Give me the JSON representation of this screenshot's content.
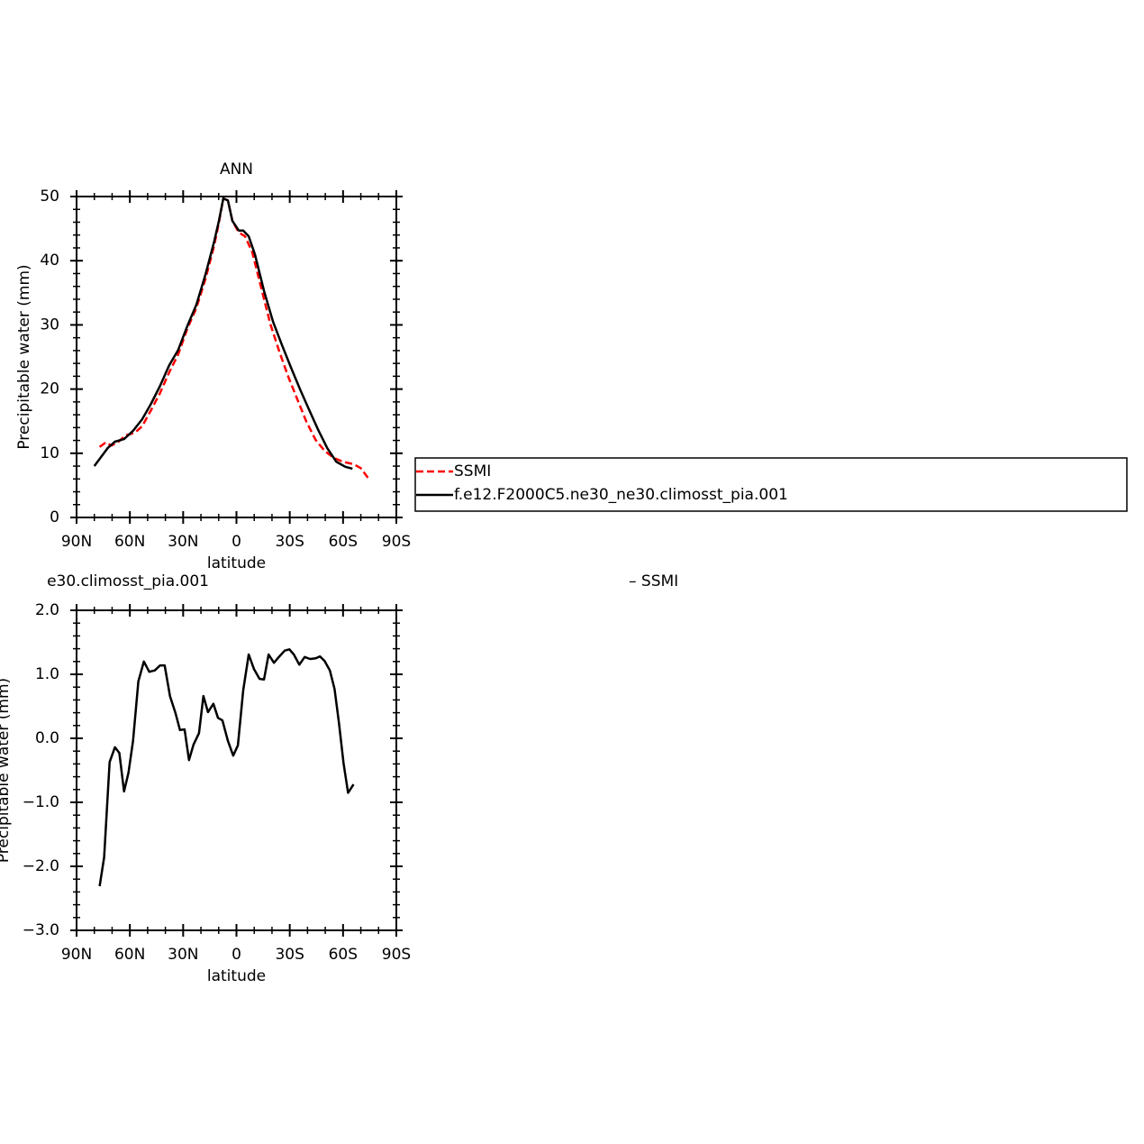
{
  "chart_data": [
    {
      "type": "line",
      "title": "ANN",
      "xlabel": "latitude",
      "ylabel": "Precipitable water (mm)",
      "xlim": [
        90,
        -90
      ],
      "xticks": [
        {
          "value": 90,
          "label": "90N"
        },
        {
          "value": 60,
          "label": "60N"
        },
        {
          "value": 30,
          "label": "30N"
        },
        0,
        {
          "value": -30,
          "label": "30S"
        },
        {
          "value": -60,
          "label": "60S"
        },
        {
          "value": -90,
          "label": "90S"
        }
      ],
      "ylim": [
        0,
        50
      ],
      "yticks": [
        0,
        10,
        20,
        30,
        40,
        50
      ],
      "legend": "right",
      "series": [
        {
          "name": "SSMI",
          "color": "#ff0000",
          "line_style": "dashed",
          "x": [
            77,
            73.5,
            70.4,
            66.4,
            62.3,
            57.2,
            53.1,
            48.1,
            43,
            37.9,
            32.8,
            27.7,
            22.6,
            17.5,
            12.5,
            9.9,
            7.4,
            4.8,
            2.3,
            -1.3,
            -4.8,
            -8.9,
            -14,
            -19.1,
            -24.2,
            -29.2,
            -34.3,
            -39.4,
            -44.5,
            -49.6,
            -54.7,
            -59.8,
            -65.9,
            -69.9,
            -74
          ],
          "values": [
            11.0,
            11.7,
            11.2,
            11.8,
            12.8,
            13.2,
            14.2,
            16.7,
            19.4,
            22.6,
            25.4,
            29.4,
            32.6,
            37.1,
            42.4,
            45.9,
            49.7,
            49.4,
            46.2,
            44.4,
            43.8,
            41.3,
            35.7,
            30.1,
            25.8,
            21.9,
            18.4,
            14.9,
            12.1,
            10.4,
            9.3,
            8.7,
            8.3,
            7.7,
            6.2
          ]
        },
        {
          "name": "f.e12.F2000C5.ne30_ne30.climosst_pia.001",
          "color": "#000000",
          "line_style": "solid",
          "x": [
            80,
            72.5,
            68.5,
            63.3,
            58.2,
            53.1,
            48.1,
            43,
            37.9,
            32.8,
            27.7,
            22.6,
            17.5,
            12.5,
            9.9,
            7.4,
            4.8,
            2.3,
            -1.3,
            -3.8,
            -6.9,
            -10.4,
            -15.5,
            -20.6,
            -25.7,
            -30.8,
            -35.9,
            -41,
            -46.1,
            -51.1,
            -56.2,
            -61.3,
            -65.3
          ],
          "values": [
            8.0,
            10.8,
            11.8,
            12.2,
            13.5,
            15.3,
            17.7,
            20.5,
            23.7,
            26.1,
            29.8,
            33.1,
            37.8,
            43.0,
            46.2,
            49.7,
            49.4,
            46.2,
            44.7,
            44.7,
            43.8,
            41.0,
            35.3,
            30.5,
            26.8,
            23.3,
            19.9,
            16.7,
            13.6,
            10.8,
            8.7,
            7.9,
            7.6
          ]
        }
      ]
    },
    {
      "type": "line",
      "title": "e30.climosst_pia.001",
      "title_right": "–  SSMI",
      "xlabel": "latitude",
      "ylabel": "Precipitable water (mm)",
      "xlim": [
        90,
        -90
      ],
      "xticks": [
        {
          "value": 90,
          "label": "90N"
        },
        {
          "value": 60,
          "label": "60N"
        },
        {
          "value": 30,
          "label": "30N"
        },
        0,
        {
          "value": -30,
          "label": "30S"
        },
        {
          "value": -60,
          "label": "60S"
        },
        {
          "value": -90,
          "label": "90S"
        }
      ],
      "ylim": [
        -3,
        2
      ],
      "yticks": [
        {
          "value": -3,
          "label": "−3.0"
        },
        {
          "value": -2,
          "label": "−2.0"
        },
        {
          "value": -1,
          "label": "−1.0"
        },
        {
          "value": 0,
          "label": "0.0"
        },
        {
          "value": 1,
          "label": "1.0"
        },
        {
          "value": 2,
          "label": "2.0"
        }
      ],
      "series": [
        {
          "color": "#000000",
          "line_style": "solid",
          "x": [
            77,
            74.5,
            71.4,
            68.4,
            65.9,
            63.3,
            60.8,
            58.2,
            55.2,
            52.1,
            49.1,
            46,
            43,
            40.4,
            37.4,
            34.3,
            31.8,
            29.2,
            26.7,
            24.2,
            21.1,
            18.6,
            16,
            13,
            10.4,
            7.9,
            4.8,
            1.8,
            -0.8,
            -3.8,
            -6.9,
            -9.9,
            -13,
            -15.5,
            -18.1,
            -21.1,
            -24.2,
            -27.2,
            -29.8,
            -32.3,
            -35.4,
            -38.4,
            -41.5,
            -44.5,
            -47,
            -49.6,
            -52.6,
            -55.2,
            -57.7,
            -60.3,
            -62.8,
            -65.9
          ],
          "values": [
            -2.31,
            -1.86,
            -0.37,
            -0.14,
            -0.23,
            -0.83,
            -0.54,
            -0.04,
            0.89,
            1.2,
            1.04,
            1.06,
            1.14,
            1.14,
            0.66,
            0.39,
            0.13,
            0.14,
            -0.34,
            -0.1,
            0.08,
            0.66,
            0.41,
            0.54,
            0.32,
            0.28,
            -0.04,
            -0.27,
            -0.11,
            0.75,
            1.31,
            1.08,
            0.93,
            0.92,
            1.31,
            1.18,
            1.28,
            1.37,
            1.39,
            1.31,
            1.15,
            1.27,
            1.24,
            1.25,
            1.28,
            1.21,
            1.06,
            0.77,
            0.24,
            -0.39,
            -0.85,
            -0.72
          ]
        }
      ]
    }
  ]
}
